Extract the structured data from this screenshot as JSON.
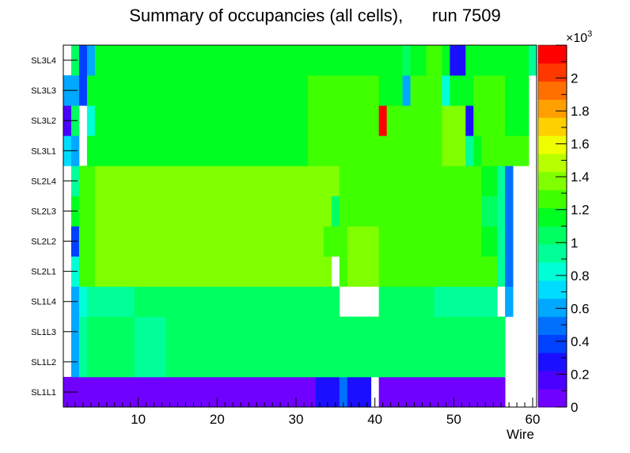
{
  "chart_data": {
    "type": "heatmap",
    "title": "Summary of occupancies (all cells),      run 7509",
    "xlabel": "Wire",
    "ylabel": "",
    "x_range": [
      0.5,
      60.5
    ],
    "x_ticks": [
      10,
      20,
      30,
      40,
      50,
      60
    ],
    "row_labels": [
      "SL1L1",
      "SL1L2",
      "SL1L3",
      "SL1L4",
      "SL2L1",
      "SL2L2",
      "SL2L3",
      "SL2L4",
      "SL3L1",
      "SL3L2",
      "SL3L3",
      "SL3L4"
    ],
    "z_range": [
      0,
      2200
    ],
    "z_ticks": [
      0,
      200,
      400,
      600,
      800,
      1000,
      1200,
      1400,
      1600,
      1800,
      2000
    ],
    "z_tick_labels": [
      "0",
      "0.2",
      "0.4",
      "0.6",
      "0.8",
      "1",
      "1.2",
      "1.4",
      "1.6",
      "1.8",
      "2"
    ],
    "z_multiplier": "×10",
    "z_exponent": "3",
    "palette": [
      "#7000ff",
      "#4a00ff",
      "#1a10ff",
      "#0040ff",
      "#0070ff",
      "#00a8ff",
      "#00dcff",
      "#00ffd8",
      "#00ff98",
      "#00ff60",
      "#00ff20",
      "#40ff00",
      "#80ff00",
      "#b8ff00",
      "#f0ff00",
      "#ffd000",
      "#ffa000",
      "#ff7000",
      "#ff3800",
      "#ff0000"
    ],
    "rows": [
      {
        "label": "SL1L1",
        "segments": [
          [
            1,
            32,
            50
          ],
          [
            33,
            35,
            220
          ],
          [
            36,
            36,
            450
          ],
          [
            37,
            39,
            220
          ],
          [
            40,
            40,
            null
          ],
          [
            41,
            56,
            50
          ],
          [
            57,
            60,
            null
          ]
        ]
      },
      {
        "label": "SL1L2",
        "segments": [
          [
            1,
            1,
            null
          ],
          [
            2,
            2,
            650
          ],
          [
            3,
            3,
            920
          ],
          [
            4,
            9,
            1000
          ],
          [
            10,
            13,
            980
          ],
          [
            14,
            30,
            1050
          ],
          [
            31,
            40,
            1000
          ],
          [
            41,
            45,
            1050
          ],
          [
            46,
            56,
            1000
          ],
          [
            57,
            60,
            null
          ]
        ]
      },
      {
        "label": "SL1L3",
        "segments": [
          [
            1,
            1,
            null
          ],
          [
            2,
            2,
            650
          ],
          [
            3,
            3,
            920
          ],
          [
            4,
            9,
            1000
          ],
          [
            10,
            13,
            980
          ],
          [
            14,
            30,
            1050
          ],
          [
            31,
            40,
            1000
          ],
          [
            41,
            47,
            1050
          ],
          [
            48,
            56,
            1000
          ],
          [
            57,
            60,
            null
          ]
        ]
      },
      {
        "label": "SL1L4",
        "segments": [
          [
            1,
            1,
            null
          ],
          [
            2,
            2,
            650
          ],
          [
            3,
            3,
            800
          ],
          [
            4,
            9,
            950
          ],
          [
            10,
            16,
            1050
          ],
          [
            17,
            28,
            1050
          ],
          [
            29,
            35,
            1020
          ],
          [
            36,
            40,
            null
          ],
          [
            41,
            47,
            1050
          ],
          [
            48,
            55,
            950
          ],
          [
            56,
            56,
            null
          ],
          [
            57,
            57,
            650
          ],
          [
            58,
            60,
            null
          ]
        ]
      },
      {
        "label": "SL2L1",
        "segments": [
          [
            1,
            1,
            null
          ],
          [
            2,
            2,
            800
          ],
          [
            3,
            4,
            1250
          ],
          [
            5,
            10,
            1350
          ],
          [
            11,
            16,
            1420
          ],
          [
            17,
            24,
            1380
          ],
          [
            25,
            34,
            1330
          ],
          [
            35,
            35,
            null
          ],
          [
            36,
            36,
            1280
          ],
          [
            37,
            40,
            1350
          ],
          [
            41,
            53,
            1300
          ],
          [
            54,
            55,
            1300
          ],
          [
            56,
            56,
            900
          ],
          [
            57,
            57,
            500
          ],
          [
            58,
            60,
            null
          ]
        ]
      },
      {
        "label": "SL2L2",
        "segments": [
          [
            1,
            1,
            null
          ],
          [
            2,
            2,
            400
          ],
          [
            3,
            4,
            1250
          ],
          [
            5,
            12,
            1330
          ],
          [
            13,
            17,
            1350
          ],
          [
            18,
            26,
            1420
          ],
          [
            27,
            33,
            1350
          ],
          [
            34,
            36,
            1250
          ],
          [
            37,
            40,
            1350
          ],
          [
            41,
            53,
            1300
          ],
          [
            54,
            55,
            1200
          ],
          [
            56,
            56,
            900
          ],
          [
            57,
            57,
            500
          ],
          [
            58,
            60,
            null
          ]
        ]
      },
      {
        "label": "SL2L3",
        "segments": [
          [
            1,
            1,
            null
          ],
          [
            2,
            2,
            1150
          ],
          [
            3,
            4,
            1250
          ],
          [
            5,
            10,
            1330
          ],
          [
            11,
            17,
            1420
          ],
          [
            18,
            26,
            1380
          ],
          [
            27,
            34,
            1350
          ],
          [
            35,
            35,
            1000
          ],
          [
            36,
            40,
            1280
          ],
          [
            41,
            53,
            1250
          ],
          [
            54,
            55,
            1000
          ],
          [
            56,
            56,
            900
          ],
          [
            57,
            57,
            500
          ],
          [
            58,
            60,
            null
          ]
        ]
      },
      {
        "label": "SL2L4",
        "segments": [
          [
            1,
            1,
            null
          ],
          [
            2,
            2,
            900
          ],
          [
            3,
            4,
            1250
          ],
          [
            5,
            9,
            1350
          ],
          [
            10,
            16,
            1380
          ],
          [
            17,
            26,
            1400
          ],
          [
            27,
            35,
            1350
          ],
          [
            36,
            40,
            1280
          ],
          [
            41,
            53,
            1250
          ],
          [
            54,
            55,
            1200
          ],
          [
            56,
            56,
            900
          ],
          [
            57,
            57,
            500
          ],
          [
            58,
            60,
            null
          ]
        ]
      },
      {
        "label": "SL3L1",
        "segments": [
          [
            1,
            1,
            700
          ],
          [
            2,
            2,
            650
          ],
          [
            3,
            3,
            null
          ],
          [
            4,
            10,
            1200
          ],
          [
            11,
            20,
            1150
          ],
          [
            21,
            31,
            1200
          ],
          [
            32,
            40,
            1250
          ],
          [
            41,
            45,
            1220
          ],
          [
            46,
            48,
            1300
          ],
          [
            49,
            51,
            1400
          ],
          [
            52,
            52,
            900
          ],
          [
            53,
            53,
            1100
          ],
          [
            54,
            56,
            1300
          ],
          [
            57,
            59,
            1250
          ],
          [
            60,
            60,
            null
          ]
        ]
      },
      {
        "label": "SL3L2",
        "segments": [
          [
            1,
            1,
            200
          ],
          [
            2,
            2,
            1000
          ],
          [
            3,
            3,
            null
          ],
          [
            4,
            4,
            800
          ],
          [
            5,
            10,
            1200
          ],
          [
            11,
            20,
            1150
          ],
          [
            21,
            31,
            1200
          ],
          [
            32,
            40,
            1250
          ],
          [
            41,
            41,
            2200
          ],
          [
            42,
            45,
            1250
          ],
          [
            46,
            48,
            1300
          ],
          [
            49,
            51,
            1350
          ],
          [
            52,
            52,
            300
          ],
          [
            53,
            56,
            1250
          ],
          [
            57,
            59,
            1200
          ],
          [
            60,
            60,
            null
          ]
        ]
      },
      {
        "label": "SL3L3",
        "segments": [
          [
            1,
            1,
            600
          ],
          [
            2,
            2,
            650
          ],
          [
            3,
            3,
            400
          ],
          [
            4,
            10,
            1200
          ],
          [
            11,
            20,
            1150
          ],
          [
            21,
            31,
            1200
          ],
          [
            32,
            40,
            1250
          ],
          [
            41,
            43,
            1200
          ],
          [
            44,
            44,
            600
          ],
          [
            45,
            46,
            1300
          ],
          [
            47,
            48,
            1250
          ],
          [
            49,
            49,
            800
          ],
          [
            50,
            52,
            1200
          ],
          [
            53,
            56,
            1250
          ],
          [
            57,
            59,
            1200
          ],
          [
            60,
            60,
            null
          ]
        ]
      },
      {
        "label": "SL3L4",
        "segments": [
          [
            1,
            1,
            null
          ],
          [
            2,
            2,
            1000
          ],
          [
            3,
            3,
            400
          ],
          [
            4,
            4,
            650
          ],
          [
            5,
            10,
            1150
          ],
          [
            11,
            20,
            1150
          ],
          [
            21,
            31,
            1150
          ],
          [
            32,
            40,
            1200
          ],
          [
            41,
            43,
            1200
          ],
          [
            44,
            44,
            1000
          ],
          [
            45,
            46,
            1150
          ],
          [
            47,
            48,
            1250
          ],
          [
            49,
            49,
            1100
          ],
          [
            50,
            50,
            300
          ],
          [
            51,
            51,
            300
          ],
          [
            52,
            59,
            1150
          ],
          [
            60,
            60,
            900
          ]
        ]
      }
    ]
  }
}
